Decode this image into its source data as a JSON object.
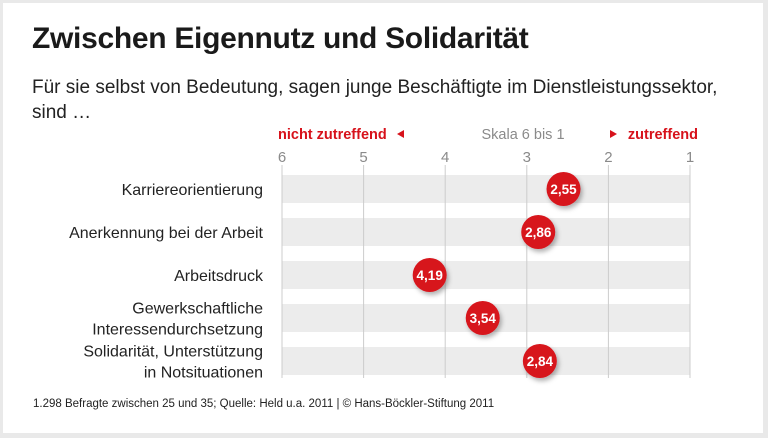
{
  "title": "Zwischen Eigennutz und Solidarität",
  "subtitle": "Für sie selbst von Bedeutung, sagen junge Beschäftigte im Dienstleistungssektor, sind …",
  "footer": "1.298 Befragte zwischen 25 und 35; Quelle: Held u.a. 2011 | © Hans-Böckler-Stiftung 2011",
  "colors": {
    "accent": "#d7121b",
    "band": "#ececec",
    "grid": "#cccccc",
    "tick": "#8a8a8a"
  },
  "chart_data": {
    "type": "scatter",
    "scale_label": "Skala 6 bis 1",
    "left_label": "nicht zutreffend",
    "right_label": "zutreffend",
    "xlim": [
      6,
      1
    ],
    "ticks": [
      "6",
      "5",
      "4",
      "3",
      "2",
      "1"
    ],
    "grid": true,
    "categories": [
      "Karriereorientierung",
      "Anerkennung bei der Arbeit",
      "Arbeitsdruck",
      "Gewerkschaftliche Interessendurchsetzung",
      "Solidarität, Unterstützung in Notsituationen"
    ],
    "category_lines": [
      [
        "Karriereorientierung"
      ],
      [
        "Anerkennung bei der Arbeit"
      ],
      [
        "Arbeitsdruck"
      ],
      [
        "Gewerkschaftliche",
        "Interessendurchsetzung"
      ],
      [
        "Solidarität, Unterstützung",
        "in Notsituationen"
      ]
    ],
    "values": [
      2.55,
      2.86,
      4.19,
      3.54,
      2.84
    ],
    "value_labels": [
      "2,55",
      "2,86",
      "4,19",
      "3,54",
      "2,84"
    ]
  }
}
